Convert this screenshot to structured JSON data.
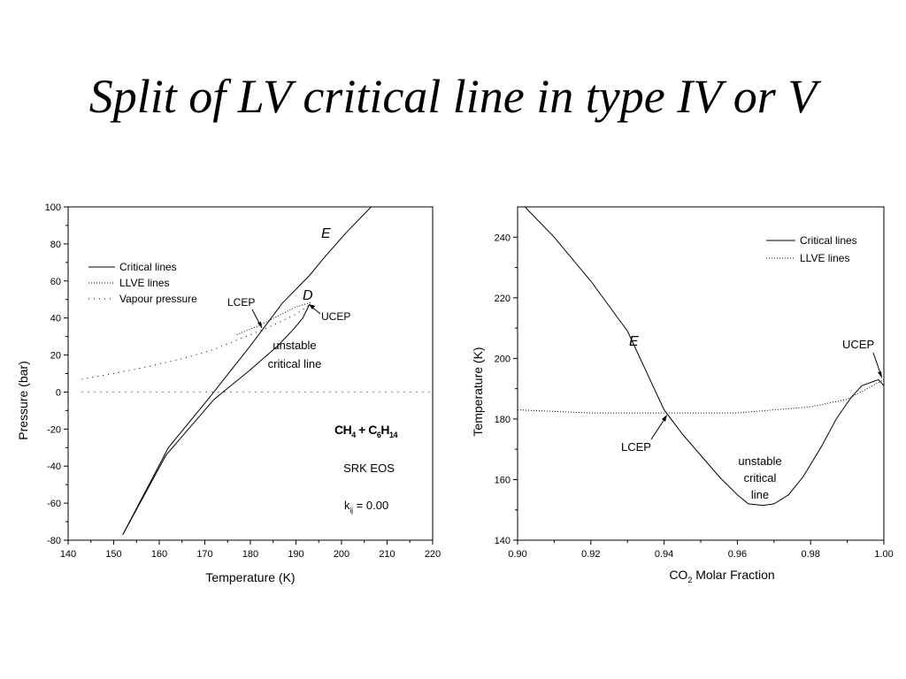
{
  "slide": {
    "title": "Split of LV critical line in type IV or V"
  },
  "chart_data": [
    {
      "type": "line",
      "xlabel": "Temperature (K)",
      "ylabel": "Pressure (bar)",
      "xlim": [
        140,
        220
      ],
      "ylim": [
        -80,
        100
      ],
      "xticks": [
        "140",
        "150",
        "160",
        "170",
        "180",
        "190",
        "200",
        "210",
        "220"
      ],
      "yticks": [
        "-80",
        "-60",
        "-40",
        "-20",
        "0",
        "20",
        "40",
        "60",
        "80",
        "100"
      ],
      "legend": [
        "Critical lines",
        "LLVE lines",
        "Vapour pressure"
      ],
      "legend_position": "upper-left",
      "series": [
        {
          "name": "Critical lines",
          "style": "solid",
          "points": [
            [
              152,
              -77
            ],
            [
              162,
              -30
            ],
            [
              171,
              -3
            ],
            [
              180,
              25
            ],
            [
              187,
              48
            ],
            [
              193,
              63
            ],
            [
              196,
              72
            ],
            [
              201,
              86
            ],
            [
              206.5,
              100
            ]
          ]
        },
        {
          "name": "Critical lines",
          "style": "solid",
          "points": [
            [
              152,
              -77
            ],
            [
              161.5,
              -34
            ],
            [
              172,
              -4
            ],
            [
              180,
              12
            ],
            [
              186,
              25
            ],
            [
              189.5,
              34
            ],
            [
              191.5,
              40
            ],
            [
              193,
              47.5
            ]
          ]
        },
        {
          "name": "LLVE lines",
          "style": "dotted",
          "points": [
            [
              177,
              31
            ],
            [
              182,
              36
            ],
            [
              186,
              41
            ],
            [
              190,
              46
            ],
            [
              193.5,
              48.5
            ]
          ]
        },
        {
          "name": "Vapour pressure",
          "style": "dotted",
          "points": [
            [
              143,
              7
            ],
            [
              150,
              10
            ],
            [
              158,
              14
            ],
            [
              165,
              18
            ],
            [
              172,
              23
            ],
            [
              178,
              29
            ],
            [
              184,
              35
            ],
            [
              190,
              42
            ],
            [
              193.5,
              48
            ]
          ]
        },
        {
          "name": "",
          "style": "dotted",
          "points": [
            [
              143,
              0
            ],
            [
              220,
              0
            ]
          ]
        }
      ],
      "annotations": {
        "e": "E",
        "d": "D",
        "lcep": "LCEP",
        "ucep": "UCEP",
        "unstable1": "unstable",
        "unstable2": "critical line",
        "system_a": "CH",
        "system_a_sub": "4",
        "system_plus": " + C",
        "system_b_sub1": "6",
        "system_b": "H",
        "system_b_sub2": "14",
        "eos": "SRK EOS",
        "kij": "k",
        "kij_sub": "ij",
        "kij_value": " = 0.00"
      }
    },
    {
      "type": "line",
      "xlabel": "CO",
      "xlabel_sub": "2",
      "xlabel_rest": " Molar Fraction",
      "ylabel": "Temperature (K)",
      "xlim": [
        0.9,
        1.0
      ],
      "ylim": [
        140,
        250
      ],
      "xticks": [
        "0.90",
        "0.92",
        "0.94",
        "0.96",
        "0.98",
        "1.00"
      ],
      "yticks": [
        "140",
        "160",
        "180",
        "200",
        "220",
        "240"
      ],
      "legend": [
        "Critical lines",
        "LLVE lines"
      ],
      "legend_position": "upper-right",
      "series": [
        {
          "name": "Critical lines",
          "style": "solid",
          "points": [
            [
              0.902,
              250
            ],
            [
              0.91,
              240
            ],
            [
              0.92,
              225.5
            ],
            [
              0.93,
              209
            ],
            [
              0.94,
              183
            ],
            [
              0.945,
              175
            ],
            [
              0.95,
              168
            ],
            [
              0.955,
              161
            ],
            [
              0.96,
              155
            ],
            [
              0.963,
              152
            ],
            [
              0.967,
              151.5
            ],
            [
              0.97,
              152
            ],
            [
              0.974,
              155
            ],
            [
              0.978,
              161
            ],
            [
              0.983,
              171
            ],
            [
              0.987,
              180
            ],
            [
              0.991,
              187
            ],
            [
              0.994,
              191
            ],
            [
              0.9985,
              193
            ],
            [
              1.0,
              191
            ]
          ]
        },
        {
          "name": "LLVE lines",
          "style": "dotted",
          "points": [
            [
              0.9,
              183
            ],
            [
              0.92,
              182
            ],
            [
              0.94,
              182
            ],
            [
              0.96,
              182
            ],
            [
              0.97,
              183
            ],
            [
              0.98,
              184
            ],
            [
              0.99,
              186.5
            ],
            [
              1.0,
              193
            ]
          ]
        }
      ],
      "annotations": {
        "e": "E",
        "lcep": "LCEP",
        "ucep": "UCEP",
        "unstable1": "unstable",
        "unstable2": "critical",
        "unstable3": "line"
      }
    }
  ]
}
